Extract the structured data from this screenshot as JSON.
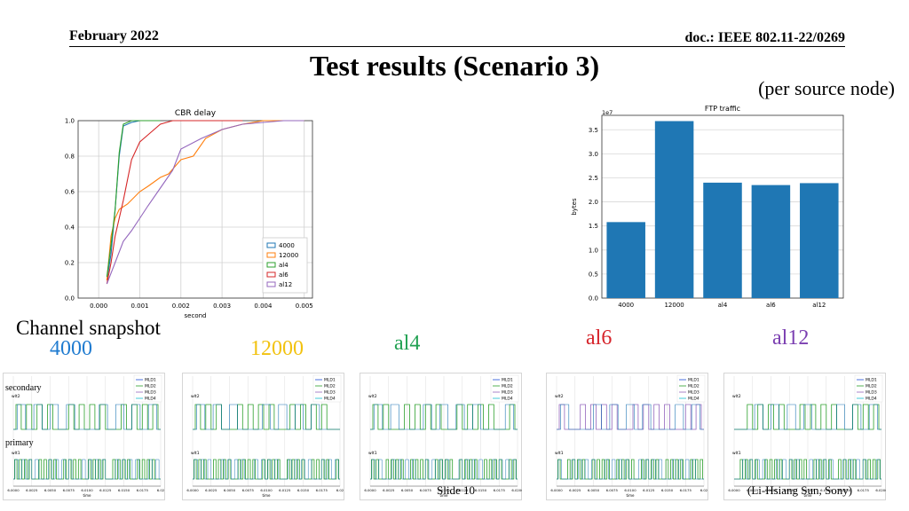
{
  "header": {
    "date": "February 2022",
    "doc": "doc.: IEEE 802.11-22/0269"
  },
  "title": "Test results (Scenario 3)",
  "subtitle": "(per source node)",
  "labels": {
    "channel_snapshot": "Channel snapshot",
    "n4000": "4000",
    "n12000": "12000",
    "al4": "al4",
    "al6": "al6",
    "al12": "al12"
  },
  "side_labels": {
    "secondary": "secondary",
    "primary": "primary"
  },
  "footer": {
    "slide": "Slide 10",
    "author": "(Li-Hsiang Sun, Sony)"
  },
  "colors": {
    "c4000": "#1f77b4",
    "c12000": "#ff7f0e",
    "al4": "#2ca02c",
    "al6": "#d62728",
    "al12": "#9467bd",
    "bar": "#1f77b4"
  },
  "chart_data": [
    {
      "type": "line",
      "title": "CBR delay",
      "xlabel": "second",
      "ylabel": "",
      "xlim": [
        -0.0005,
        0.0052
      ],
      "ylim": [
        0,
        1.0
      ],
      "xticks": [
        "0.000",
        "0.001",
        "0.002",
        "0.003",
        "0.004",
        "0.005"
      ],
      "yticks": [
        "0.0",
        "0.2",
        "0.4",
        "0.6",
        "0.8",
        "1.0"
      ],
      "grid": true,
      "legend": "bottom-right",
      "series": [
        {
          "name": "4000",
          "x": [
            0.0002,
            0.0003,
            0.0004,
            0.0005,
            0.0006,
            0.0008,
            0.001,
            0.0015
          ],
          "y": [
            0.1,
            0.25,
            0.5,
            0.8,
            0.97,
            0.99,
            1.0,
            1.0
          ]
        },
        {
          "name": "12000",
          "x": [
            0.0002,
            0.0003,
            0.0004,
            0.0005,
            0.0007,
            0.001,
            0.0012,
            0.0015,
            0.0017,
            0.002,
            0.0023,
            0.0026,
            0.003,
            0.0035,
            0.004,
            0.005
          ],
          "y": [
            0.1,
            0.35,
            0.45,
            0.5,
            0.53,
            0.6,
            0.63,
            0.68,
            0.7,
            0.78,
            0.8,
            0.9,
            0.95,
            0.98,
            1.0,
            1.0
          ]
        },
        {
          "name": "al4",
          "x": [
            0.0002,
            0.0003,
            0.0004,
            0.0005,
            0.0006,
            0.0008,
            0.001,
            0.0015
          ],
          "y": [
            0.12,
            0.3,
            0.5,
            0.82,
            0.98,
            1.0,
            1.0,
            1.0
          ]
        },
        {
          "name": "al6",
          "x": [
            0.0002,
            0.0003,
            0.0004,
            0.0006,
            0.0008,
            0.001,
            0.0012,
            0.0015,
            0.0018,
            0.002,
            0.0025,
            0.003,
            0.0035
          ],
          "y": [
            0.08,
            0.2,
            0.35,
            0.55,
            0.78,
            0.88,
            0.92,
            0.98,
            1.0,
            1.0,
            1.0,
            1.0,
            1.0
          ]
        },
        {
          "name": "al12",
          "x": [
            0.0002,
            0.0004,
            0.0006,
            0.0008,
            0.001,
            0.0012,
            0.0015,
            0.0018,
            0.002,
            0.0025,
            0.003,
            0.0035,
            0.004,
            0.0045,
            0.005
          ],
          "y": [
            0.08,
            0.2,
            0.32,
            0.38,
            0.45,
            0.52,
            0.62,
            0.72,
            0.84,
            0.9,
            0.95,
            0.98,
            0.99,
            1.0,
            1.0
          ]
        }
      ]
    },
    {
      "type": "bar",
      "title": "FTP traffic",
      "ylabel": "bytes",
      "scale_label": "1e7",
      "categories": [
        "4000",
        "12000",
        "al4",
        "al6",
        "al12"
      ],
      "values": [
        1.58,
        3.68,
        2.4,
        2.35,
        2.39
      ],
      "ylim": [
        0,
        3.8
      ],
      "yticks": [
        "0.0",
        "0.5",
        "1.0",
        "1.5",
        "2.0",
        "2.5",
        "3.0",
        "3.5"
      ],
      "grid": true
    }
  ],
  "snapshots": [
    {
      "name": "4000",
      "lines": [
        "MLD1",
        "MLD2",
        "MLD3",
        "MLD4"
      ],
      "top_label": "wlt2",
      "bottom_label": "wlt1",
      "xticks": [
        "6.0000",
        "6.0025",
        "6.0050",
        "6.0075",
        "6.0100",
        "6.0125",
        "6.0150",
        "6.0175",
        "6.02"
      ],
      "xlabel": "time",
      "dominant": "#2ca02c"
    },
    {
      "name": "12000",
      "lines": [
        "MLD1",
        "MLD2",
        "MLD3",
        "MLD4"
      ],
      "top_label": "wlt2",
      "bottom_label": "wlt1",
      "xticks": [
        "6.0000",
        "6.0025",
        "6.0050",
        "6.0075",
        "6.0100",
        "6.0125",
        "6.0150",
        "6.0175",
        "6.02"
      ],
      "xlabel": "time",
      "dominant": "#2ca02c"
    },
    {
      "name": "al4",
      "lines": [
        "MLD1",
        "MLD2",
        "MLD3",
        "MLD4"
      ],
      "top_label": "wlt2",
      "bottom_label": "wlt1",
      "xticks": [
        "6.0000",
        "6.0025",
        "6.0050",
        "6.0075",
        "6.0100",
        "6.0125",
        "6.0150",
        "6.0175",
        "6.0200"
      ],
      "xlabel": "time",
      "dominant": "#2ca02c"
    },
    {
      "name": "al6",
      "lines": [
        "MLD1",
        "MLD2",
        "MLD3",
        "MLD4"
      ],
      "top_label": "wlt2",
      "bottom_label": "wlt1",
      "xticks": [
        "6.0000",
        "6.0025",
        "6.0050",
        "6.0075",
        "6.0100",
        "6.0125",
        "6.0150",
        "6.0175",
        "6.02"
      ],
      "xlabel": "time",
      "dominant": "#9467bd"
    },
    {
      "name": "al12",
      "lines": [
        "MLD1",
        "MLD2",
        "MLD3",
        "MLD4"
      ],
      "top_label": "wlt2",
      "bottom_label": "wlt1",
      "xticks": [
        "6.0000",
        "6.0025",
        "6.0050",
        "6.0075",
        "6.0100",
        "6.0125",
        "6.0150",
        "6.0175",
        "6.0200"
      ],
      "xlabel": "time",
      "dominant": "#2ca02c"
    }
  ]
}
